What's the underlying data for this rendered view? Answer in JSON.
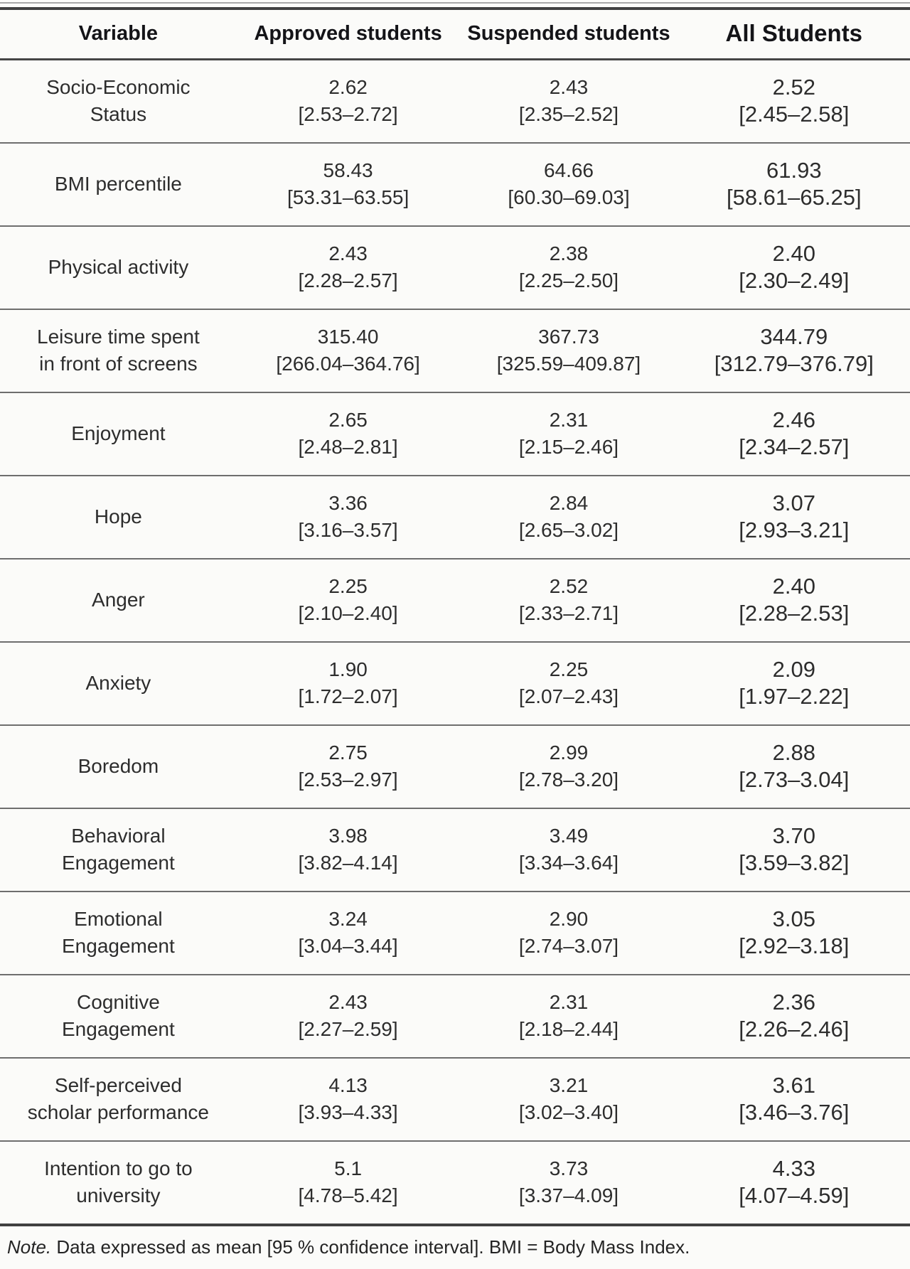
{
  "table": {
    "columns": [
      "Variable",
      "Approved students",
      "Suspended students",
      "All Students"
    ],
    "rows": [
      {
        "variable": "Socio-Economic\nStatus",
        "approved": {
          "mean": "2.62",
          "ci": "[2.53–2.72]"
        },
        "suspended": {
          "mean": "2.43",
          "ci": "[2.35–2.52]"
        },
        "all": {
          "mean": "2.52",
          "ci": "[2.45–2.58]"
        }
      },
      {
        "variable": "BMI percentile",
        "approved": {
          "mean": "58.43",
          "ci": "[53.31–63.55]"
        },
        "suspended": {
          "mean": "64.66",
          "ci": "[60.30–69.03]"
        },
        "all": {
          "mean": "61.93",
          "ci": "[58.61–65.25]"
        }
      },
      {
        "variable": "Physical activity",
        "approved": {
          "mean": "2.43",
          "ci": "[2.28–2.57]"
        },
        "suspended": {
          "mean": "2.38",
          "ci": "[2.25–2.50]"
        },
        "all": {
          "mean": "2.40",
          "ci": "[2.30–2.49]"
        }
      },
      {
        "variable": "Leisure time spent\nin front of screens",
        "approved": {
          "mean": "315.40",
          "ci": "[266.04–364.76]"
        },
        "suspended": {
          "mean": "367.73",
          "ci": "[325.59–409.87]"
        },
        "all": {
          "mean": "344.79",
          "ci": "[312.79–376.79]"
        }
      },
      {
        "variable": "Enjoyment",
        "approved": {
          "mean": "2.65",
          "ci": "[2.48–2.81]"
        },
        "suspended": {
          "mean": "2.31",
          "ci": "[2.15–2.46]"
        },
        "all": {
          "mean": "2.46",
          "ci": "[2.34–2.57]"
        }
      },
      {
        "variable": "Hope",
        "approved": {
          "mean": "3.36",
          "ci": "[3.16–3.57]"
        },
        "suspended": {
          "mean": "2.84",
          "ci": "[2.65–3.02]"
        },
        "all": {
          "mean": "3.07",
          "ci": "[2.93–3.21]"
        }
      },
      {
        "variable": "Anger",
        "approved": {
          "mean": "2.25",
          "ci": "[2.10–2.40]"
        },
        "suspended": {
          "mean": "2.52",
          "ci": "[2.33–2.71]"
        },
        "all": {
          "mean": "2.40",
          "ci": "[2.28–2.53]"
        }
      },
      {
        "variable": "Anxiety",
        "approved": {
          "mean": "1.90",
          "ci": "[1.72–2.07]"
        },
        "suspended": {
          "mean": "2.25",
          "ci": "[2.07–2.43]"
        },
        "all": {
          "mean": "2.09",
          "ci": "[1.97–2.22]"
        }
      },
      {
        "variable": "Boredom",
        "approved": {
          "mean": "2.75",
          "ci": "[2.53–2.97]"
        },
        "suspended": {
          "mean": "2.99",
          "ci": "[2.78–3.20]"
        },
        "all": {
          "mean": "2.88",
          "ci": "[2.73–3.04]"
        }
      },
      {
        "variable": "Behavioral\nEngagement",
        "approved": {
          "mean": "3.98",
          "ci": "[3.82–4.14]"
        },
        "suspended": {
          "mean": "3.49",
          "ci": "[3.34–3.64]"
        },
        "all": {
          "mean": "3.70",
          "ci": "[3.59–3.82]"
        }
      },
      {
        "variable": "Emotional\nEngagement",
        "approved": {
          "mean": "3.24",
          "ci": "[3.04–3.44]"
        },
        "suspended": {
          "mean": "2.90",
          "ci": "[2.74–3.07]"
        },
        "all": {
          "mean": "3.05",
          "ci": "[2.92–3.18]"
        }
      },
      {
        "variable": "Cognitive\nEngagement",
        "approved": {
          "mean": "2.43",
          "ci": "[2.27–2.59]"
        },
        "suspended": {
          "mean": "2.31",
          "ci": "[2.18–2.44]"
        },
        "all": {
          "mean": "2.36",
          "ci": "[2.26–2.46]"
        }
      },
      {
        "variable": "Self-perceived\nscholar performance",
        "approved": {
          "mean": "4.13",
          "ci": "[3.93–4.33]"
        },
        "suspended": {
          "mean": "3.21",
          "ci": "[3.02–3.40]"
        },
        "all": {
          "mean": "3.61",
          "ci": "[3.46–3.76]"
        }
      },
      {
        "variable": "Intention to go to\nuniversity",
        "approved": {
          "mean": "5.1",
          "ci": "[4.78–5.42]"
        },
        "suspended": {
          "mean": "3.73",
          "ci": "[3.37–4.09]"
        },
        "all": {
          "mean": "4.33",
          "ci": "[4.07–4.59]"
        }
      }
    ]
  },
  "note": {
    "prefix": "Note.",
    "text": " Data expressed as mean [95 % confidence interval]. BMI = Body Mass Index."
  }
}
